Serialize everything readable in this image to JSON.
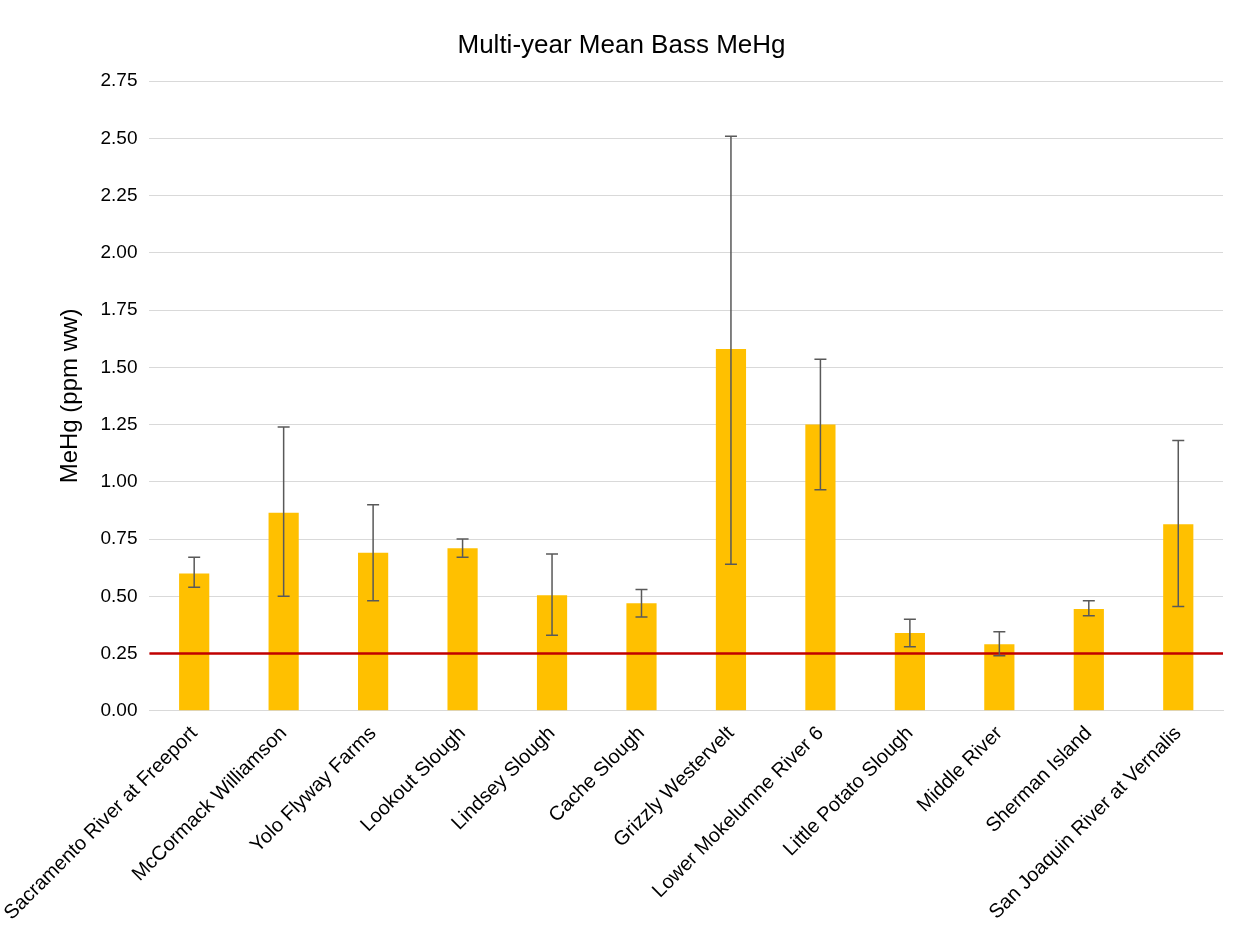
{
  "chart_data": {
    "type": "bar",
    "title": "Multi-year Mean Bass MeHg",
    "ylabel": "MeHg (ppm ww)",
    "categories": [
      "Sacramento River at Freeport",
      "McCormack Williamson",
      "Yolo Flyway Farms",
      "Lookout Slough",
      "Lindsey Slough",
      "Cache Slough",
      "Grizzly Westervelt",
      "Lower Mokelumne River 6",
      "Little Potato Slough",
      "Middle River",
      "Sherman Island",
      "San Joaquin River at Vernalis"
    ],
    "values": [
      0.6,
      0.865,
      0.69,
      0.71,
      0.505,
      0.47,
      1.58,
      1.25,
      0.34,
      0.29,
      0.445,
      0.815
    ],
    "errors": [
      [
        0.54,
        0.67
      ],
      [
        0.5,
        1.24
      ],
      [
        0.48,
        0.9
      ],
      [
        0.67,
        0.75
      ],
      [
        0.33,
        0.685
      ],
      [
        0.41,
        0.53
      ],
      [
        0.64,
        2.51
      ],
      [
        0.965,
        1.535
      ],
      [
        0.28,
        0.4
      ],
      [
        0.24,
        0.345
      ],
      [
        0.415,
        0.48
      ],
      [
        0.455,
        1.18
      ]
    ],
    "color": "#ffc000",
    "ylim": [
      0,
      2.75
    ],
    "yticks": [
      {
        "value": 0,
        "label": "0.00"
      },
      {
        "value": 0.25,
        "label": "0.25"
      },
      {
        "value": 0.5,
        "label": "0.50"
      },
      {
        "value": 0.75,
        "label": "0.75"
      },
      {
        "value": 1,
        "label": "1.00"
      },
      {
        "value": 1.25,
        "label": "1.25"
      },
      {
        "value": 1.5,
        "label": "1.50"
      },
      {
        "value": 1.75,
        "label": "1.75"
      },
      {
        "value": 2,
        "label": "2.00"
      },
      {
        "value": 2.25,
        "label": "2.25"
      },
      {
        "value": 2.5,
        "label": "2.50"
      },
      {
        "value": 2.75,
        "label": "2.75"
      }
    ],
    "grid": "y",
    "ref_lines": [
      {
        "axis": "y",
        "value": 0.25,
        "color": "#c00000"
      }
    ]
  }
}
